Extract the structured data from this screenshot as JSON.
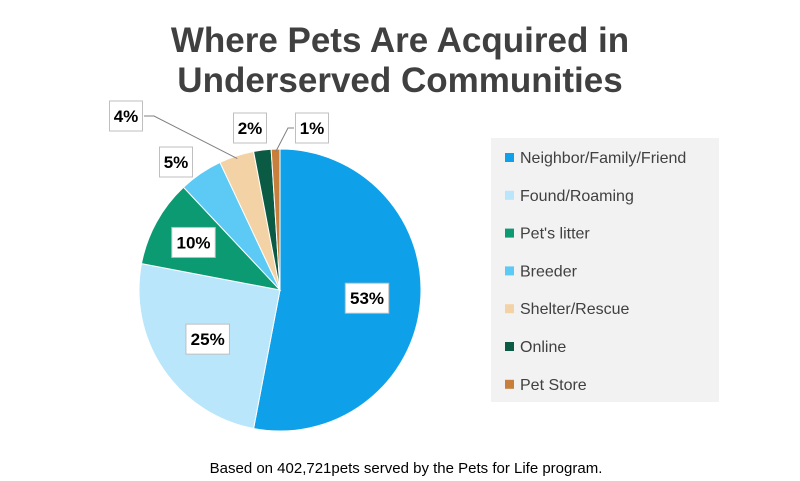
{
  "chart_data": {
    "type": "pie",
    "title_lines": [
      "Where Pets Are Acquired in",
      "Underserved Communities"
    ],
    "slices": [
      {
        "name": "Neighbor/Family/Friend",
        "value": 53,
        "label": "53%",
        "color": "#0ea0e8"
      },
      {
        "name": "Found/Roaming",
        "value": 25,
        "label": "25%",
        "color": "#b9e6fa"
      },
      {
        "name": "Pet's litter",
        "value": 10,
        "label": "10%",
        "color": "#0c9a72"
      },
      {
        "name": "Breeder",
        "value": 5,
        "label": "5%",
        "color": "#5ccaf5"
      },
      {
        "name": "Shelter/Rescue",
        "value": 4,
        "label": "4%",
        "color": "#f3d3a6"
      },
      {
        "name": "Online",
        "value": 2,
        "label": "2%",
        "color": "#0b5a43"
      },
      {
        "name": "Pet Store",
        "value": 1,
        "label": "1%",
        "color": "#c87f3c"
      }
    ],
    "legend_position": "right",
    "footnote": "Based on 402,721pets served by the Pets for Life program."
  }
}
